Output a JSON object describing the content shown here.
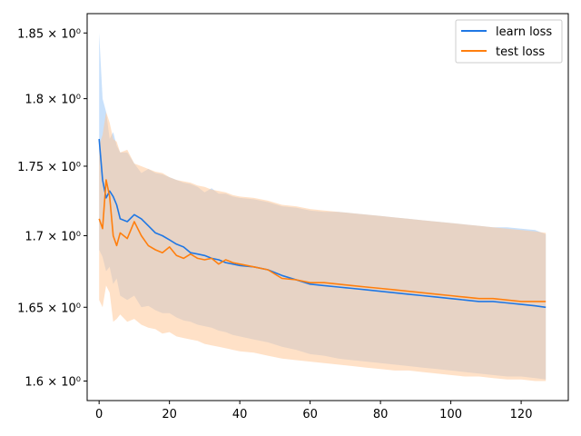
{
  "chart_data": {
    "type": "line",
    "yscale": "log",
    "xlim": [
      -3.4,
      133.4
    ],
    "ylim": [
      1.587,
      1.865
    ],
    "xticks": [
      0,
      20,
      40,
      60,
      80,
      100,
      120
    ],
    "xtick_labels": [
      "0",
      "20",
      "40",
      "60",
      "80",
      "100",
      "120"
    ],
    "yticks": [
      1.6,
      1.65,
      1.7,
      1.75,
      1.8,
      1.85
    ],
    "ytick_labels": [
      "1.6 × 10⁰",
      "1.65 × 10⁰",
      "1.7 × 10⁰",
      "1.75 × 10⁰",
      "1.8 × 10⁰",
      "1.85 × 10⁰"
    ],
    "legend_position": "top-right",
    "grid": false,
    "series": [
      {
        "name": "learn loss",
        "color": "#1f77e4",
        "band_color": "#9cc9f7",
        "x": [
          0,
          1,
          2,
          3,
          4,
          5,
          6,
          8,
          10,
          12,
          14,
          16,
          18,
          20,
          22,
          24,
          26,
          28,
          30,
          32,
          34,
          36,
          38,
          40,
          44,
          48,
          52,
          56,
          60,
          64,
          68,
          72,
          76,
          80,
          84,
          88,
          92,
          96,
          100,
          104,
          108,
          112,
          116,
          120,
          124,
          127
        ],
        "values": [
          1.77,
          1.74,
          1.727,
          1.732,
          1.728,
          1.722,
          1.712,
          1.71,
          1.715,
          1.712,
          1.707,
          1.702,
          1.7,
          1.697,
          1.694,
          1.692,
          1.688,
          1.687,
          1.686,
          1.684,
          1.683,
          1.681,
          1.68,
          1.679,
          1.678,
          1.676,
          1.672,
          1.669,
          1.666,
          1.665,
          1.664,
          1.663,
          1.662,
          1.661,
          1.66,
          1.659,
          1.658,
          1.657,
          1.656,
          1.655,
          1.654,
          1.654,
          1.653,
          1.652,
          1.651,
          1.65
        ],
        "upper": [
          1.85,
          1.8,
          1.79,
          1.77,
          1.775,
          1.765,
          1.76,
          1.76,
          1.752,
          1.745,
          1.748,
          1.745,
          1.744,
          1.742,
          1.74,
          1.738,
          1.737,
          1.735,
          1.731,
          1.734,
          1.73,
          1.73,
          1.728,
          1.727,
          1.726,
          1.724,
          1.721,
          1.72,
          1.718,
          1.717,
          1.717,
          1.716,
          1.715,
          1.714,
          1.713,
          1.712,
          1.711,
          1.71,
          1.709,
          1.708,
          1.707,
          1.706,
          1.706,
          1.705,
          1.704,
          1.701
        ],
        "lower": [
          1.69,
          1.685,
          1.675,
          1.678,
          1.666,
          1.67,
          1.658,
          1.655,
          1.658,
          1.65,
          1.651,
          1.648,
          1.646,
          1.646,
          1.643,
          1.641,
          1.64,
          1.638,
          1.637,
          1.636,
          1.634,
          1.633,
          1.631,
          1.63,
          1.628,
          1.626,
          1.623,
          1.621,
          1.618,
          1.617,
          1.615,
          1.614,
          1.613,
          1.612,
          1.611,
          1.61,
          1.609,
          1.608,
          1.607,
          1.606,
          1.605,
          1.604,
          1.603,
          1.603,
          1.602,
          1.601
        ]
      },
      {
        "name": "test loss",
        "color": "#ff7f0e",
        "band_color": "#ffc999",
        "x": [
          0,
          1,
          2,
          3,
          4,
          5,
          6,
          8,
          10,
          12,
          14,
          16,
          18,
          20,
          22,
          24,
          26,
          28,
          30,
          32,
          34,
          36,
          38,
          40,
          44,
          48,
          52,
          56,
          60,
          64,
          68,
          72,
          76,
          80,
          84,
          88,
          92,
          96,
          100,
          104,
          108,
          112,
          116,
          120,
          124,
          127
        ],
        "values": [
          1.712,
          1.705,
          1.74,
          1.728,
          1.7,
          1.693,
          1.702,
          1.698,
          1.71,
          1.7,
          1.693,
          1.69,
          1.688,
          1.692,
          1.686,
          1.684,
          1.687,
          1.684,
          1.683,
          1.684,
          1.68,
          1.683,
          1.681,
          1.68,
          1.678,
          1.676,
          1.67,
          1.669,
          1.667,
          1.667,
          1.666,
          1.665,
          1.664,
          1.663,
          1.662,
          1.661,
          1.66,
          1.659,
          1.658,
          1.657,
          1.656,
          1.656,
          1.655,
          1.654,
          1.654,
          1.654
        ],
        "upper": [
          1.765,
          1.773,
          1.79,
          1.782,
          1.77,
          1.768,
          1.76,
          1.762,
          1.752,
          1.75,
          1.748,
          1.746,
          1.745,
          1.742,
          1.74,
          1.739,
          1.738,
          1.736,
          1.735,
          1.733,
          1.732,
          1.731,
          1.729,
          1.728,
          1.727,
          1.725,
          1.722,
          1.721,
          1.719,
          1.718,
          1.717,
          1.716,
          1.715,
          1.714,
          1.713,
          1.712,
          1.711,
          1.71,
          1.709,
          1.708,
          1.707,
          1.706,
          1.705,
          1.704,
          1.703,
          1.702
        ],
        "lower": [
          1.655,
          1.65,
          1.665,
          1.66,
          1.64,
          1.642,
          1.645,
          1.64,
          1.642,
          1.638,
          1.636,
          1.635,
          1.632,
          1.633,
          1.63,
          1.629,
          1.628,
          1.627,
          1.625,
          1.624,
          1.623,
          1.622,
          1.621,
          1.62,
          1.619,
          1.617,
          1.615,
          1.614,
          1.613,
          1.612,
          1.611,
          1.61,
          1.609,
          1.608,
          1.607,
          1.607,
          1.606,
          1.605,
          1.604,
          1.603,
          1.603,
          1.602,
          1.601,
          1.601,
          1.6,
          1.6
        ]
      }
    ]
  }
}
